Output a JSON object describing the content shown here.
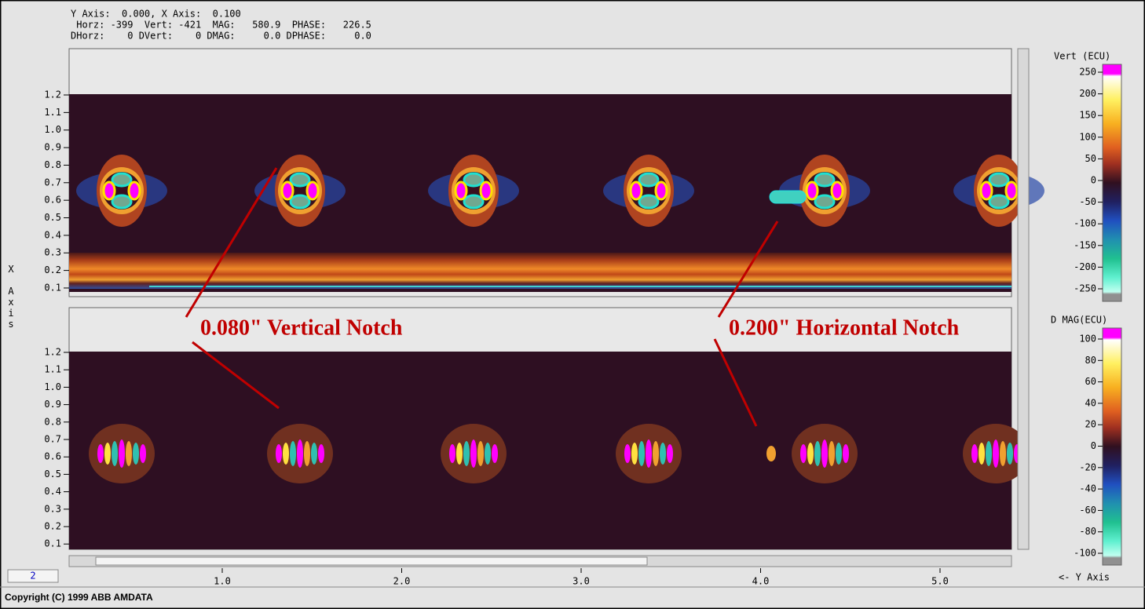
{
  "header": {
    "lines": [
      "Y Axis:  0.000, X Axis:  0.100",
      " Horz: -399  Vert: -421  MAG:   580.9  PHASE:   226.5",
      "DHorz:    0 DVert:    0 DMAG:     0.0 DPHASE:     0.0"
    ]
  },
  "panels": [
    {
      "yticks": [
        "1.2",
        "1.1",
        "1.0",
        "0.9",
        "0.8",
        "0.7",
        "0.6",
        "0.5",
        "0.4",
        "0.3",
        "0.2",
        "0.1"
      ]
    },
    {
      "yticks": [
        "1.2",
        "1.1",
        "1.0",
        "0.9",
        "0.8",
        "0.7",
        "0.6",
        "0.5",
        "0.4",
        "0.3",
        "0.2",
        "0.1"
      ]
    }
  ],
  "x_axis": {
    "ticks": [
      "1.0",
      "2.0",
      "3.0",
      "4.0",
      "5.0"
    ],
    "label": "<- Y Axis"
  },
  "y_axis": {
    "label": "X Axis"
  },
  "colorbars": [
    {
      "title": "Vert (ECU)",
      "ticks": [
        "250",
        "200",
        "150",
        "100",
        "50",
        "0",
        "-50",
        "-100",
        "-150",
        "-200",
        "-250"
      ]
    },
    {
      "title": "D MAG(ECU)",
      "ticks": [
        "100",
        "80",
        "60",
        "40",
        "20",
        "0",
        "-20",
        "-40",
        "-60",
        "-80",
        "-100"
      ]
    }
  ],
  "annotations": [
    "0.080\" Vertical Notch",
    "0.200\" Horizontal Notch"
  ],
  "page_indicator": "2",
  "footer": "Copyright (C) 1999 ABB AMDATA"
}
